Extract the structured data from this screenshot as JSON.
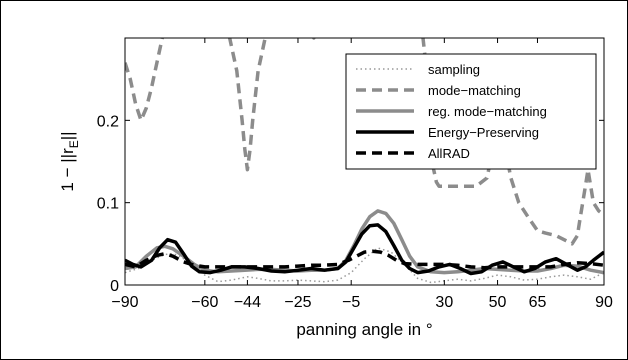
{
  "chart_data": {
    "type": "line",
    "title": "",
    "xlabel": "panning angle in °",
    "ylabel": "1 − ||r_E||",
    "ylabel_main": "1 − ||r",
    "ylabel_sub": "E",
    "ylabel_end": "||",
    "xlim": [
      -90,
      90
    ],
    "ylim": [
      0,
      0.3
    ],
    "xticks": [
      -90,
      -60,
      -44,
      -25,
      -5,
      30,
      50,
      65,
      90
    ],
    "xtick_labels": [
      "−90",
      "−60",
      "−44",
      "−25",
      "−5",
      "30",
      "50",
      "65",
      "90"
    ],
    "yticks": [
      0,
      0.1,
      0.2
    ],
    "ytick_labels": [
      "0",
      "0.1",
      "0.2"
    ],
    "grid": false,
    "legend_position": "top-right",
    "series": [
      {
        "name": "sampling",
        "color": "#999999",
        "style": "dotted",
        "x": [
          -90,
          -85,
          -80,
          -75,
          -72,
          -70,
          -66,
          -60,
          -55,
          -50,
          -44,
          -40,
          -35,
          -30,
          -25,
          -20,
          -15,
          -10,
          -5,
          0,
          5,
          10,
          15,
          20,
          25,
          30,
          35,
          40,
          45,
          50,
          55,
          60,
          65,
          70,
          75,
          80,
          85,
          90
        ],
        "y": [
          0.015,
          0.02,
          0.03,
          0.037,
          0.038,
          0.036,
          0.028,
          0.012,
          0.004,
          0.006,
          0.01,
          0.008,
          0.005,
          0.005,
          0.006,
          0.005,
          0.004,
          0.006,
          0.015,
          0.032,
          0.045,
          0.04,
          0.025,
          0.008,
          0.003,
          0.005,
          0.007,
          0.005,
          0.008,
          0.012,
          0.01,
          0.006,
          0.007,
          0.01,
          0.012,
          0.01,
          0.007,
          0.015
        ]
      },
      {
        "name": "mode−matching",
        "color": "#8c8c8c",
        "style": "dashed",
        "x": [
          -90,
          -88,
          -86,
          -84,
          -82,
          -80,
          -78,
          -76,
          -75,
          -74,
          -70,
          -60,
          -52,
          -48,
          -46,
          -45,
          -44,
          -43,
          -42,
          -40,
          -36,
          -32,
          -26,
          -24,
          -22,
          -21,
          -20,
          -19,
          -18,
          -17,
          -15,
          -13,
          -12,
          20,
          21,
          22,
          23,
          24,
          25,
          26,
          27,
          28,
          30,
          32,
          35,
          38,
          42,
          46,
          48,
          50,
          52,
          55,
          58,
          62,
          65,
          68,
          72,
          75,
          78,
          80,
          81,
          82,
          83,
          84,
          85,
          86,
          88,
          90
        ],
        "y": [
          0.27,
          0.25,
          0.22,
          0.2,
          0.215,
          0.24,
          0.27,
          0.3,
          0.32,
          0.34,
          0.33,
          0.32,
          0.32,
          0.26,
          0.2,
          0.165,
          0.14,
          0.165,
          0.2,
          0.26,
          0.32,
          0.32,
          0.32,
          0.32,
          0.32,
          0.32,
          0.32,
          0.3,
          0.32,
          0.32,
          0.32,
          0.32,
          0.32,
          0.32,
          0.32,
          0.3,
          0.27,
          0.22,
          0.17,
          0.14,
          0.125,
          0.12,
          0.12,
          0.12,
          0.12,
          0.12,
          0.12,
          0.13,
          0.16,
          0.2,
          0.18,
          0.13,
          0.1,
          0.08,
          0.066,
          0.063,
          0.06,
          0.055,
          0.05,
          0.06,
          0.08,
          0.1,
          0.12,
          0.14,
          0.12,
          0.1,
          0.09,
          0.085
        ]
      },
      {
        "name": "reg. mode−matching",
        "color": "#8c8c8c",
        "style": "solid",
        "x": [
          -90,
          -86,
          -82,
          -78,
          -75,
          -72,
          -68,
          -64,
          -60,
          -55,
          -50,
          -45,
          -40,
          -35,
          -30,
          -25,
          -20,
          -15,
          -10,
          -7,
          -4,
          -1,
          2,
          5,
          8,
          11,
          14,
          17,
          20,
          25,
          30,
          35,
          40,
          45,
          50,
          55,
          60,
          65,
          70,
          75,
          80,
          85,
          90
        ],
        "y": [
          0.02,
          0.022,
          0.035,
          0.045,
          0.047,
          0.044,
          0.035,
          0.025,
          0.018,
          0.016,
          0.017,
          0.018,
          0.019,
          0.019,
          0.018,
          0.017,
          0.018,
          0.018,
          0.02,
          0.03,
          0.048,
          0.068,
          0.083,
          0.09,
          0.087,
          0.075,
          0.055,
          0.035,
          0.022,
          0.016,
          0.015,
          0.016,
          0.018,
          0.02,
          0.019,
          0.018,
          0.017,
          0.017,
          0.02,
          0.024,
          0.023,
          0.018,
          0.015
        ]
      },
      {
        "name": "Energy−Preserving",
        "color": "#000000",
        "style": "solid",
        "x": [
          -90,
          -87,
          -84,
          -80,
          -77,
          -74,
          -71,
          -68,
          -65,
          -62,
          -58,
          -54,
          -50,
          -45,
          -40,
          -35,
          -30,
          -25,
          -20,
          -15,
          -10,
          -7,
          -4,
          -1,
          2,
          5,
          8,
          11,
          14,
          17,
          20,
          24,
          28,
          32,
          36,
          40,
          44,
          48,
          52,
          56,
          60,
          64,
          68,
          72,
          76,
          80,
          83,
          86,
          90
        ],
        "y": [
          0.03,
          0.025,
          0.022,
          0.03,
          0.045,
          0.055,
          0.052,
          0.038,
          0.023,
          0.016,
          0.015,
          0.018,
          0.022,
          0.022,
          0.02,
          0.017,
          0.016,
          0.018,
          0.02,
          0.018,
          0.02,
          0.028,
          0.045,
          0.062,
          0.072,
          0.073,
          0.065,
          0.048,
          0.03,
          0.02,
          0.015,
          0.017,
          0.022,
          0.025,
          0.02,
          0.014,
          0.016,
          0.024,
          0.028,
          0.022,
          0.016,
          0.02,
          0.028,
          0.032,
          0.025,
          0.018,
          0.022,
          0.03,
          0.04
        ]
      },
      {
        "name": "AllRAD",
        "color": "#000000",
        "style": "dashed",
        "x": [
          -90,
          -86,
          -82,
          -78,
          -75,
          -72,
          -68,
          -64,
          -60,
          -55,
          -50,
          -45,
          -40,
          -35,
          -30,
          -25,
          -20,
          -15,
          -10,
          -6,
          -3,
          0,
          3,
          6,
          9,
          12,
          15,
          20,
          25,
          30,
          35,
          40,
          45,
          50,
          55,
          60,
          65,
          70,
          75,
          80,
          85,
          90
        ],
        "y": [
          0.025,
          0.022,
          0.03,
          0.036,
          0.038,
          0.035,
          0.028,
          0.024,
          0.022,
          0.022,
          0.022,
          0.022,
          0.022,
          0.022,
          0.022,
          0.023,
          0.024,
          0.024,
          0.025,
          0.03,
          0.035,
          0.04,
          0.041,
          0.04,
          0.036,
          0.03,
          0.026,
          0.025,
          0.025,
          0.025,
          0.024,
          0.022,
          0.021,
          0.022,
          0.022,
          0.022,
          0.022,
          0.022,
          0.025,
          0.027,
          0.026,
          0.024
        ]
      }
    ]
  }
}
